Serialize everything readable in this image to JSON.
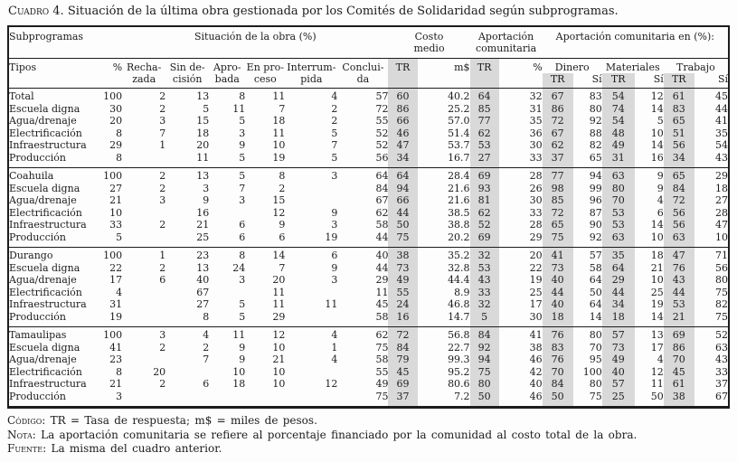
{
  "title": {
    "label": "Cuadro 4.",
    "text": "Situación de la última obra gestionada por los Comités de Solidaridad según subprogramas."
  },
  "colors": {
    "shade": "#d9d9d9",
    "ink": "#1c1c1c"
  },
  "table": {
    "header": {
      "subprogramas": "Subprogramas",
      "situacion": "Situación de la obra (%)",
      "costo_medio": "Costo\nmedio",
      "aportacion": "Aportación\ncomunitaria",
      "aportacion_en": "Aportación comunitaria en (%):",
      "tipos": "Tipos",
      "pct": "%",
      "situacion_cols": [
        "Recha-\nzada",
        "Sin de-\ncisión",
        "Apro-\nbada",
        "En pro-\nceso",
        "Interrum-\npida",
        "Conclui-\nda"
      ],
      "tr": "TR",
      "ms": "m$",
      "dinero": "Dinero",
      "materiales": "Materiales",
      "trabajo": "Trabajo",
      "si": "Sí"
    },
    "groups": [
      {
        "rows": [
          [
            "Total",
            "100",
            "2",
            "13",
            "8",
            "11",
            "4",
            "57",
            "60",
            "40.2",
            "64",
            "32",
            "67",
            "83",
            "54",
            "12",
            "61",
            "45"
          ],
          [
            "Escuela digna",
            "30",
            "2",
            "5",
            "11",
            "7",
            "2",
            "72",
            "86",
            "25.2",
            "85",
            "31",
            "86",
            "80",
            "74",
            "14",
            "83",
            "44"
          ],
          [
            "Agua/drenaje",
            "20",
            "3",
            "15",
            "5",
            "18",
            "2",
            "55",
            "66",
            "57.0",
            "77",
            "35",
            "72",
            "92",
            "54",
            "5",
            "65",
            "41"
          ],
          [
            "Electrificación",
            "8",
            "7",
            "18",
            "3",
            "11",
            "5",
            "52",
            "46",
            "51.4",
            "62",
            "36",
            "67",
            "88",
            "48",
            "10",
            "51",
            "35"
          ],
          [
            "Infraestructura",
            "29",
            "1",
            "20",
            "9",
            "10",
            "7",
            "52",
            "47",
            "53.7",
            "53",
            "30",
            "62",
            "82",
            "49",
            "14",
            "56",
            "54"
          ],
          [
            "Producción",
            "8",
            "",
            "11",
            "5",
            "19",
            "5",
            "56",
            "34",
            "16.7",
            "27",
            "33",
            "37",
            "65",
            "31",
            "16",
            "34",
            "43"
          ]
        ]
      },
      {
        "rows": [
          [
            "Coahuila",
            "100",
            "2",
            "13",
            "5",
            "8",
            "3",
            "64",
            "64",
            "28.4",
            "69",
            "28",
            "77",
            "94",
            "63",
            "9",
            "65",
            "29"
          ],
          [
            "Escuela digna",
            "27",
            "2",
            "3",
            "7",
            "2",
            "",
            "84",
            "94",
            "21.6",
            "93",
            "26",
            "98",
            "99",
            "80",
            "9",
            "84",
            "18"
          ],
          [
            "Agua/drenaje",
            "21",
            "3",
            "9",
            "3",
            "15",
            "",
            "67",
            "66",
            "21.6",
            "81",
            "30",
            "85",
            "96",
            "70",
            "4",
            "72",
            "27"
          ],
          [
            "Electrificación",
            "10",
            "",
            "16",
            "",
            "12",
            "9",
            "62",
            "44",
            "38.5",
            "62",
            "33",
            "72",
            "87",
            "53",
            "6",
            "56",
            "28"
          ],
          [
            "Infraestructura",
            "33",
            "2",
            "21",
            "6",
            "9",
            "3",
            "58",
            "50",
            "38.8",
            "52",
            "28",
            "65",
            "90",
            "53",
            "14",
            "56",
            "47"
          ],
          [
            "Producción",
            "5",
            "",
            "25",
            "6",
            "6",
            "19",
            "44",
            "75",
            "20.2",
            "69",
            "29",
            "75",
            "92",
            "63",
            "10",
            "63",
            "10"
          ]
        ]
      },
      {
        "rows": [
          [
            "Durango",
            "100",
            "1",
            "23",
            "8",
            "14",
            "6",
            "40",
            "38",
            "35.2",
            "32",
            "20",
            "41",
            "57",
            "35",
            "18",
            "47",
            "71"
          ],
          [
            "Escuela digna",
            "22",
            "2",
            "13",
            "24",
            "7",
            "9",
            "44",
            "73",
            "32.8",
            "53",
            "22",
            "73",
            "58",
            "64",
            "21",
            "76",
            "56"
          ],
          [
            "Agua/drenaje",
            "17",
            "6",
            "40",
            "3",
            "20",
            "3",
            "29",
            "49",
            "44.4",
            "43",
            "19",
            "40",
            "64",
            "29",
            "10",
            "43",
            "80"
          ],
          [
            "Electrificación",
            "4",
            "",
            "67",
            "",
            "11",
            "",
            "11",
            "55",
            "8.9",
            "33",
            "25",
            "44",
            "50",
            "44",
            "25",
            "44",
            "75"
          ],
          [
            "Infraestructura",
            "31",
            "",
            "27",
            "5",
            "11",
            "11",
            "45",
            "24",
            "46.8",
            "32",
            "17",
            "40",
            "64",
            "34",
            "19",
            "53",
            "82"
          ],
          [
            "Producción",
            "19",
            "",
            "8",
            "5",
            "29",
            "",
            "58",
            "16",
            "14.7",
            "5",
            "30",
            "18",
            "14",
            "18",
            "14",
            "21",
            "75"
          ]
        ]
      },
      {
        "rows": [
          [
            "Tamaulipas",
            "100",
            "3",
            "4",
            "11",
            "12",
            "4",
            "62",
            "72",
            "56.8",
            "84",
            "41",
            "76",
            "80",
            "57",
            "13",
            "69",
            "52"
          ],
          [
            "Escuela digna",
            "41",
            "2",
            "2",
            "9",
            "10",
            "1",
            "75",
            "84",
            "22.7",
            "92",
            "38",
            "83",
            "70",
            "73",
            "17",
            "86",
            "63"
          ],
          [
            "Agua/drenaje",
            "23",
            "",
            "7",
            "9",
            "21",
            "4",
            "58",
            "79",
            "99.3",
            "94",
            "46",
            "76",
            "95",
            "49",
            "4",
            "70",
            "43"
          ],
          [
            "Electrificación",
            "8",
            "20",
            "",
            "10",
            "10",
            "",
            "55",
            "45",
            "95.2",
            "75",
            "42",
            "70",
            "100",
            "40",
            "12",
            "45",
            "33"
          ],
          [
            "Infraestructura",
            "21",
            "2",
            "6",
            "18",
            "10",
            "12",
            "49",
            "69",
            "80.6",
            "80",
            "40",
            "84",
            "80",
            "57",
            "11",
            "61",
            "37"
          ],
          [
            "Producción",
            "3",
            "",
            "",
            "",
            "",
            "",
            "75",
            "37",
            "7.2",
            "50",
            "46",
            "50",
            "75",
            "25",
            "50",
            "38",
            "67"
          ]
        ]
      }
    ]
  },
  "notes": {
    "codigo_label": "Código:",
    "codigo_text": "TR = Tasa de respuesta; m$ = miles de pesos.",
    "nota_label": "Nota:",
    "nota_text": "La aportación comunitaria se refiere al porcentaje financiado por la comunidad al costo total de la obra.",
    "fuente_label": "Fuente:",
    "fuente_text": "La misma del cuadro anterior."
  }
}
